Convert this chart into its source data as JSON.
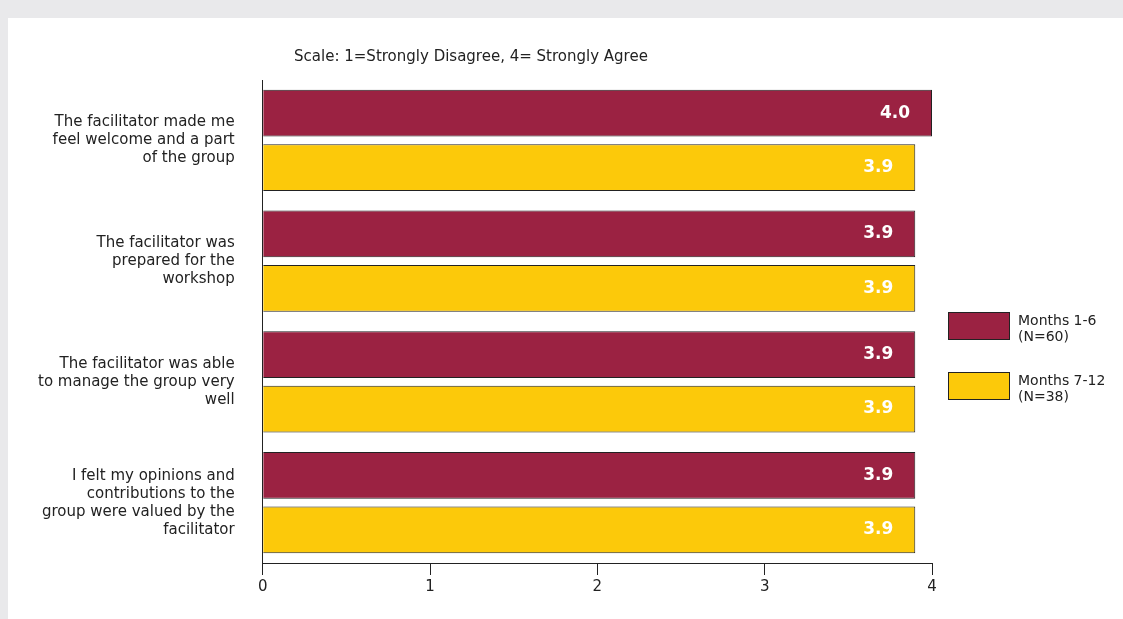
{
  "chart_data": {
    "type": "bar",
    "orientation": "horizontal",
    "title": "Scale: 1=Strongly Disagree, 4= Strongly Agree",
    "categories": [
      "The facilitator made me feel welcome and a part of the group",
      "The facilitator was prepared for the workshop",
      "The facilitator was able to manage the group very well",
      "I felt my opinions and contributions to the group were valued by the facilitator"
    ],
    "series": [
      {
        "name": "Months 1-6 (N=60)",
        "color": "#9b2242",
        "values": [
          4.0,
          3.9,
          3.9,
          3.9
        ]
      },
      {
        "name": "Months 7-12 (N=38)",
        "color": "#fcc90a",
        "values": [
          3.9,
          3.9,
          3.9,
          3.9
        ]
      }
    ],
    "value_labels": [
      [
        "4.0",
        "3.9",
        "3.9",
        "3.9"
      ],
      [
        "3.9",
        "3.9",
        "3.9",
        "3.9"
      ]
    ],
    "xlim": [
      0,
      4
    ],
    "xticks": [
      0,
      1,
      2,
      3,
      4
    ],
    "grid": false,
    "legend": "right"
  }
}
